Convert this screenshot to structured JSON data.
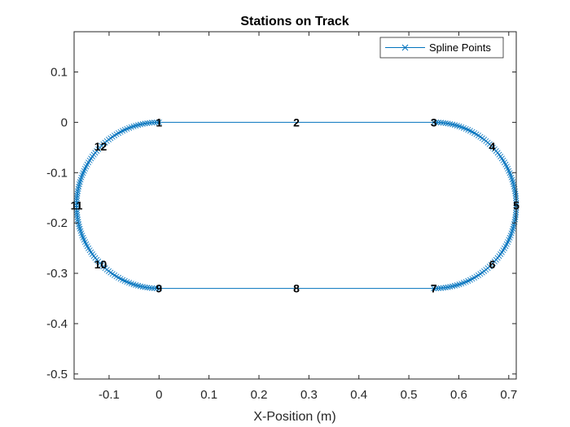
{
  "chart_data": {
    "type": "line",
    "title": "Stations on Track",
    "xlabel": "X-Position (m)",
    "ylabel": "",
    "xlim": [
      -0.17,
      0.715
    ],
    "ylim": [
      -0.51,
      0.18
    ],
    "x_ticks": [
      -0.1,
      0,
      0.1,
      0.2,
      0.3,
      0.4,
      0.5,
      0.6,
      0.7
    ],
    "x_tick_labels": [
      "-0.1",
      "0",
      "0.1",
      "0.2",
      "0.3",
      "0.4",
      "0.5",
      "0.6",
      "0.7"
    ],
    "y_ticks": [
      0.1,
      0,
      -0.1,
      -0.2,
      -0.3,
      -0.4,
      -0.5
    ],
    "y_tick_labels": [
      "0.1",
      "0",
      "-0.1",
      "-0.2",
      "-0.3",
      "-0.4",
      "-0.5"
    ],
    "grid": false,
    "legend_position": "top-right",
    "series": [
      {
        "name": "Spline Points",
        "color": "#0072BD",
        "marker": "x",
        "line_style": "solid"
      }
    ],
    "track": {
      "straight_start_x": 0,
      "straight_end_x": 0.55,
      "top_y": 0,
      "bottom_y": -0.33,
      "turn_radius": 0.165,
      "center_y": -0.165
    },
    "stations": [
      {
        "label": "1",
        "x": 0,
        "y": 0
      },
      {
        "label": "2",
        "x": 0.275,
        "y": 0
      },
      {
        "label": "3",
        "x": 0.55,
        "y": 0
      },
      {
        "label": "4",
        "x": 0.667,
        "y": -0.048
      },
      {
        "label": "5",
        "x": 0.715,
        "y": -0.165
      },
      {
        "label": "6",
        "x": 0.667,
        "y": -0.282
      },
      {
        "label": "7",
        "x": 0.55,
        "y": -0.33
      },
      {
        "label": "8",
        "x": 0.275,
        "y": -0.33
      },
      {
        "label": "9",
        "x": 0,
        "y": -0.33
      },
      {
        "label": "10",
        "x": -0.117,
        "y": -0.282
      },
      {
        "label": "11",
        "x": -0.165,
        "y": -0.165
      },
      {
        "label": "12",
        "x": -0.117,
        "y": -0.048
      }
    ]
  }
}
